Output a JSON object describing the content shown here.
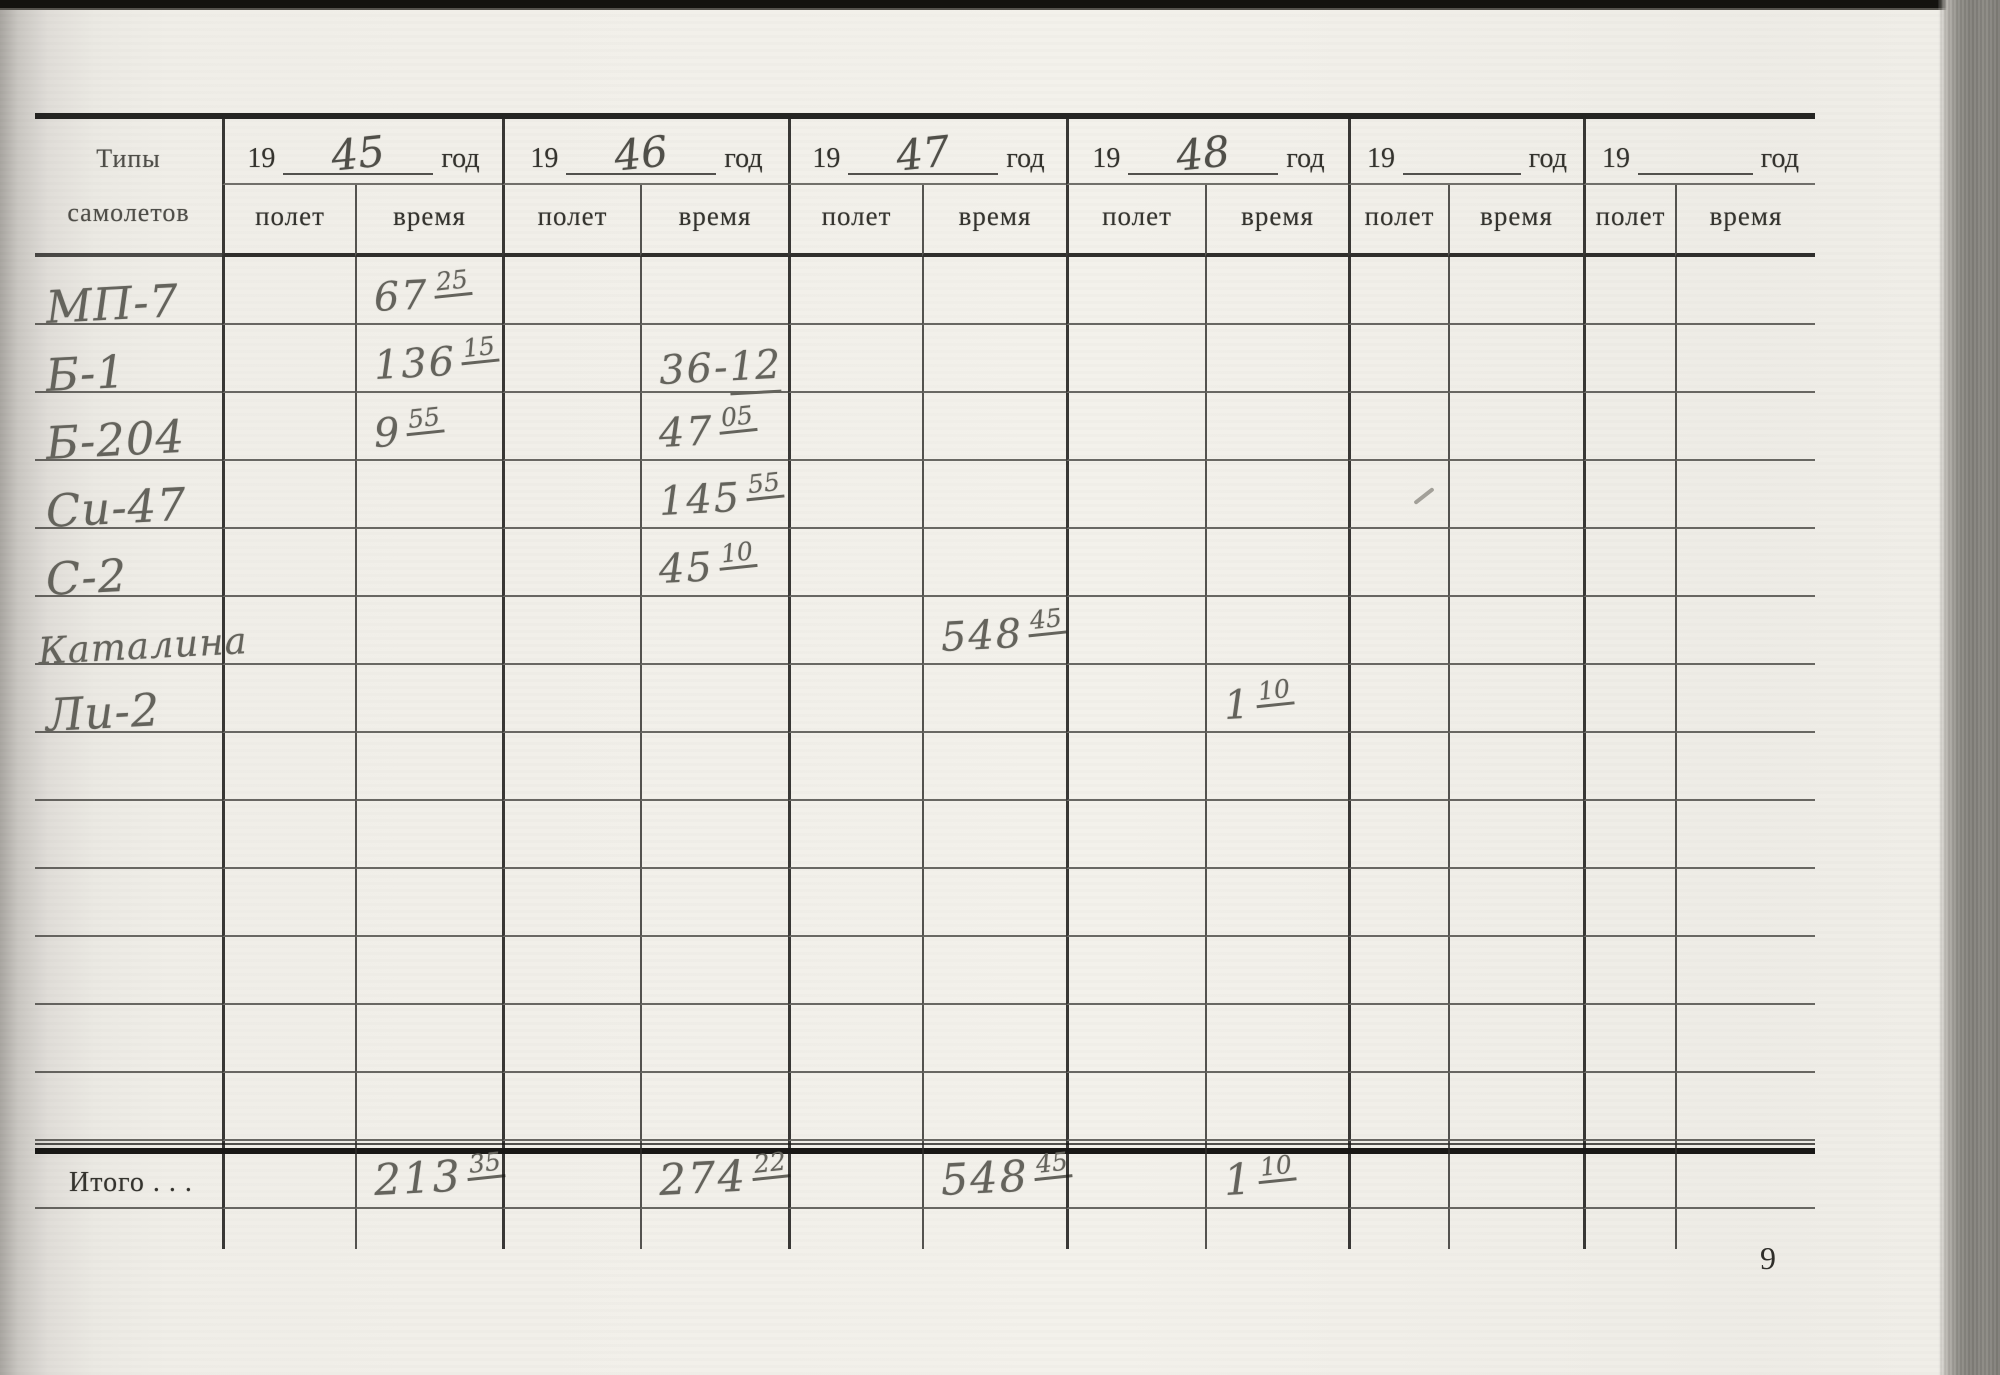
{
  "scan": {
    "page_number": "9",
    "colors": {
      "paper": "#f0eee8",
      "ink": "#34332e",
      "pencil": "#64635c",
      "line": "#2f2e2b"
    }
  },
  "table": {
    "label_header_line1": "Типы",
    "label_header_line2": "самолетов",
    "year_prefix": "19",
    "year_suffix": "год",
    "col_flight": "полет",
    "col_time": "время",
    "totals_label": "Итого . . .",
    "years": [
      "45",
      "46",
      "47",
      "48",
      "",
      ""
    ],
    "aircraft_rows": [
      {
        "name": "МП-7",
        "entries": [
          {
            "year": 0,
            "col": "time",
            "main": "67",
            "sup": "25",
            "style": "sup"
          }
        ]
      },
      {
        "name": "Б-1",
        "entries": [
          {
            "year": 0,
            "col": "time",
            "main": "136",
            "sup": "15",
            "style": "sup"
          },
          {
            "year": 1,
            "col": "time",
            "main": "36-",
            "sup": "12",
            "style": "inline"
          }
        ]
      },
      {
        "name": "Б-204",
        "entries": [
          {
            "year": 0,
            "col": "time",
            "main": "9",
            "sup": "55",
            "style": "sup"
          },
          {
            "year": 1,
            "col": "time",
            "main": "47",
            "sup": "05",
            "style": "sup"
          }
        ]
      },
      {
        "name": "Си-47",
        "entries": [
          {
            "year": 1,
            "col": "time",
            "main": "145",
            "sup": "55",
            "style": "sup"
          }
        ]
      },
      {
        "name": "С-2",
        "entries": [
          {
            "year": 1,
            "col": "time",
            "main": "45",
            "sup": "10",
            "style": "sup"
          }
        ]
      },
      {
        "name": "Каталина",
        "entries": [
          {
            "year": 2,
            "col": "time",
            "main": "548",
            "sup": "45",
            "style": "sup"
          }
        ]
      },
      {
        "name": "Ли-2",
        "entries": [
          {
            "year": 3,
            "col": "time",
            "main": "1",
            "sup": "10",
            "style": "sup"
          }
        ]
      },
      {
        "name": "",
        "entries": []
      },
      {
        "name": "",
        "entries": []
      },
      {
        "name": "",
        "entries": []
      },
      {
        "name": "",
        "entries": []
      },
      {
        "name": "",
        "entries": []
      },
      {
        "name": "",
        "entries": []
      }
    ],
    "totals": {
      "entries": [
        {
          "year": 0,
          "col": "time",
          "main": "213",
          "sup": "35",
          "style": "sup"
        },
        {
          "year": 1,
          "col": "time",
          "main": "274",
          "sup": "22",
          "style": "sup"
        },
        {
          "year": 2,
          "col": "time",
          "main": "548",
          "sup": "45",
          "style": "sup"
        },
        {
          "year": 3,
          "col": "time",
          "main": "1",
          "sup": "10",
          "style": "sup"
        }
      ]
    }
  }
}
